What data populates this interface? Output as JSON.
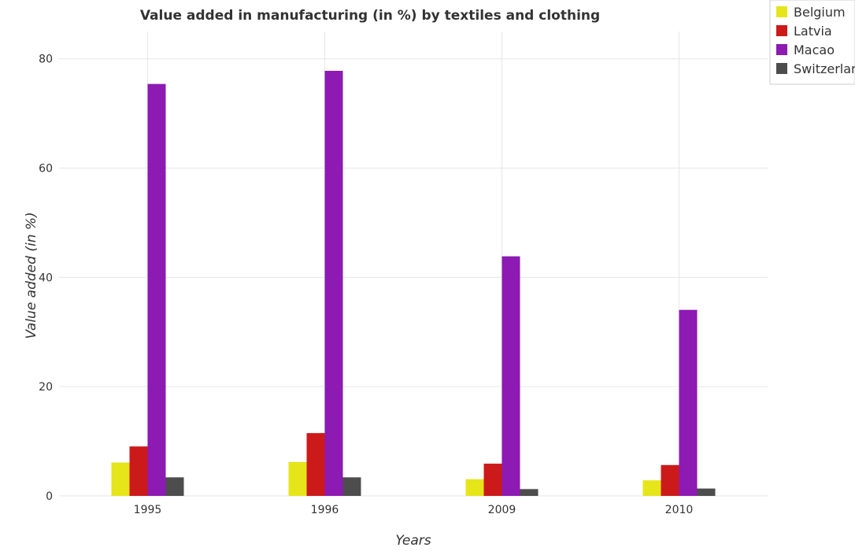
{
  "chart_data": {
    "type": "bar",
    "title": "Value added in manufacturing (in %) by textiles and clothing",
    "xlabel": "Years",
    "ylabel": "Value added (in %)",
    "categories": [
      "1995",
      "1996",
      "2009",
      "2010"
    ],
    "ylim": [
      0,
      85
    ],
    "yticks": [
      0,
      20,
      40,
      60,
      80
    ],
    "grid": true,
    "legend_position": "top-right",
    "series": [
      {
        "name": "Belgium",
        "color": "#e5e51a",
        "values": [
          6.1,
          6.2,
          3.05,
          2.85
        ]
      },
      {
        "name": "Latvia",
        "color": "#cc1a1a",
        "values": [
          9.05,
          11.5,
          5.9,
          5.65
        ]
      },
      {
        "name": "Macao",
        "color": "#8c1ab3",
        "values": [
          75.4,
          77.8,
          43.85,
          34.05
        ]
      },
      {
        "name": "Switzerland",
        "color": "#4d4d4d",
        "values": [
          3.4,
          3.4,
          1.25,
          1.35
        ]
      }
    ]
  }
}
